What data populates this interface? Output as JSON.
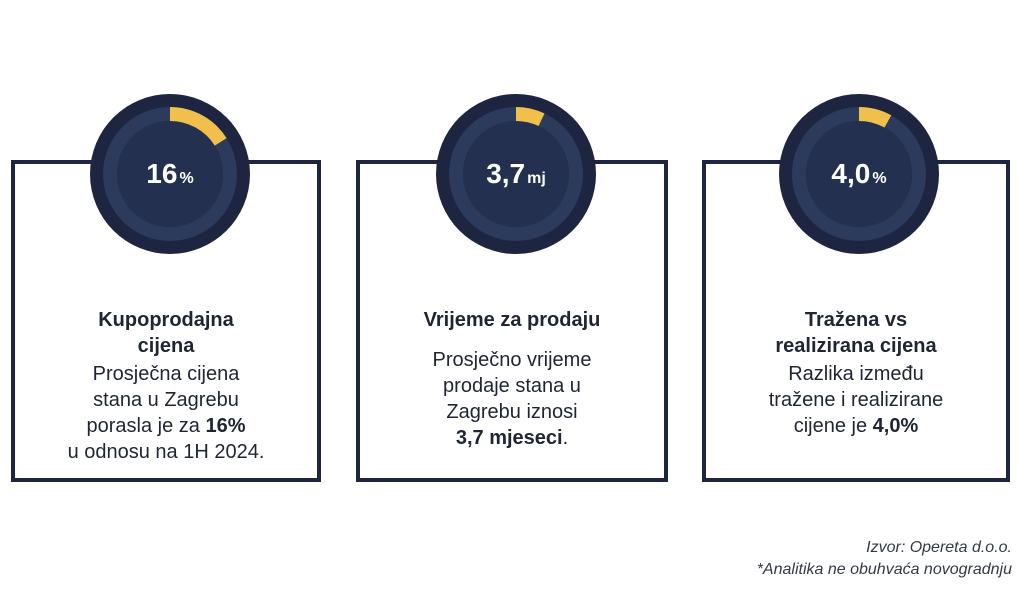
{
  "colors": {
    "navy": "#1d2540",
    "inner": "#24304f",
    "track": "#2c3a5c",
    "accent": "#f0bf4c"
  },
  "cards": [
    {
      "gauge": {
        "value": "16",
        "unit": "%",
        "fill_fraction": 0.16
      },
      "title_lines": [
        "Kupoprodajna",
        "cijena"
      ],
      "text_lines": [
        "Prosječna cijena",
        "stana u Zagrebu"
      ],
      "text_line3_pre": "porasla je za ",
      "text_line3_bold": "16%",
      "text_line4": "u odnosu na 1H 2024."
    },
    {
      "gauge": {
        "value": "3,7",
        "unit": "mj",
        "fill_fraction": 0.07
      },
      "title_lines": [
        "Vrijeme za prodaju"
      ],
      "text_lines": [
        "Prosječno vrijeme",
        "prodaje stana u",
        "Zagrebu iznosi"
      ],
      "text_bold": "3,7 mjeseci",
      "text_suffix": "."
    },
    {
      "gauge": {
        "value": "4,0",
        "unit": "%",
        "fill_fraction": 0.08
      },
      "title_lines": [
        "Tražena vs",
        "realizirana cijena"
      ],
      "text_lines": [
        "Razlika između",
        "tražene i realizirane"
      ],
      "text_line3_pre": "cijene je ",
      "text_line3_bold": "4,0%"
    }
  ],
  "footer": {
    "source": "Izvor: Opereta d.o.o.",
    "note": "*Analitika ne obuhvaća novogradnju"
  }
}
